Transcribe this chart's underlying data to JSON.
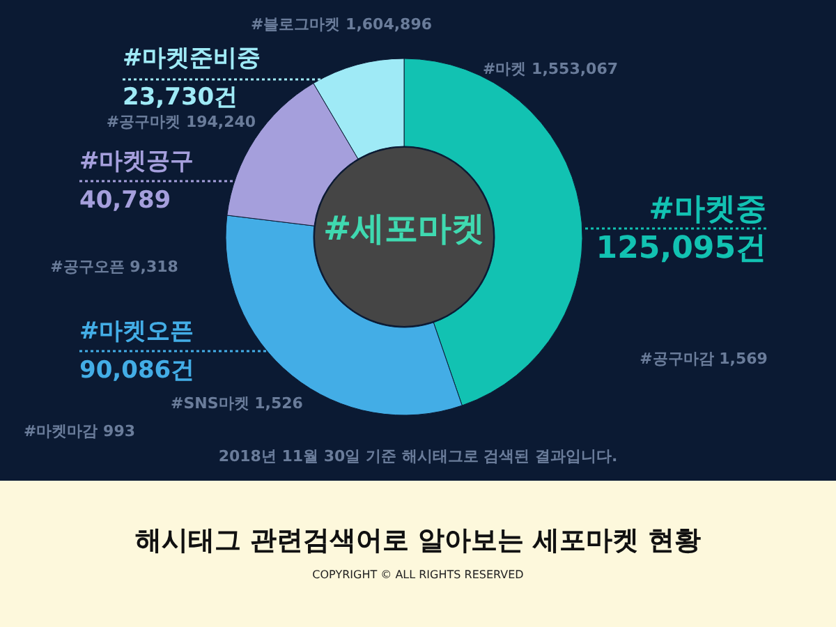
{
  "chart_data": {
    "type": "donut",
    "title": "해시태그 관련검색어로 알아보는 세포마켓 현황",
    "categories": [
      "#마켓중",
      "#마켓오픈",
      "#마켓공구",
      "#마켓준비중"
    ],
    "values": [
      125095,
      90086,
      40789,
      23730
    ],
    "colors": [
      "#12c2b2",
      "#43ade6",
      "#a59fdc",
      "#9feaf6"
    ],
    "value_labels": [
      "125,095건",
      "90,086건",
      "40,789",
      "23,730건"
    ],
    "annotations": [
      "#세포마켓",
      "#블로그마켓 1,604,896",
      "#마켓 1,553,067",
      "#공구마켓 194,240",
      "#공구오픈 9,318",
      "#공구마감 1,569",
      "#SNS마켓 1,526",
      "#마켓마감 993",
      "2018년 11월 30일 기준 해시태그로 검색된 결과입니다.",
      "COPYRIGHT © ALL RIGHTS RESERVED"
    ]
  }
}
